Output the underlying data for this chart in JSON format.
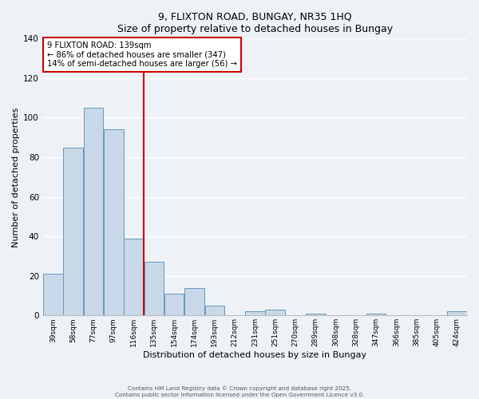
{
  "title": "9, FLIXTON ROAD, BUNGAY, NR35 1HQ",
  "subtitle": "Size of property relative to detached houses in Bungay",
  "xlabel": "Distribution of detached houses by size in Bungay",
  "ylabel": "Number of detached properties",
  "bar_color": "#c8d8e8",
  "bar_edge_color": "#6699bb",
  "background_color": "#eef2f7",
  "grid_color": "#ffffff",
  "categories": [
    "39sqm",
    "58sqm",
    "77sqm",
    "97sqm",
    "116sqm",
    "135sqm",
    "154sqm",
    "174sqm",
    "193sqm",
    "212sqm",
    "231sqm",
    "251sqm",
    "270sqm",
    "289sqm",
    "308sqm",
    "328sqm",
    "347sqm",
    "366sqm",
    "385sqm",
    "405sqm",
    "424sqm"
  ],
  "values": [
    21,
    85,
    105,
    94,
    39,
    27,
    11,
    14,
    5,
    0,
    2,
    3,
    0,
    1,
    0,
    0,
    1,
    0,
    0,
    0,
    2
  ],
  "ylim": [
    0,
    140
  ],
  "yticks": [
    0,
    20,
    40,
    60,
    80,
    100,
    120,
    140
  ],
  "vline_index": 5,
  "vline_color": "#cc0000",
  "annotation_line1": "9 FLIXTON ROAD: 139sqm",
  "annotation_line2": "← 86% of detached houses are smaller (347)",
  "annotation_line3": "14% of semi-detached houses are larger (56) →",
  "annotation_box_color": "#ffffff",
  "annotation_box_edge": "#cc0000",
  "footer1": "Contains HM Land Registry data © Crown copyright and database right 2025.",
  "footer2": "Contains public sector information licensed under the Open Government Licence v3.0."
}
